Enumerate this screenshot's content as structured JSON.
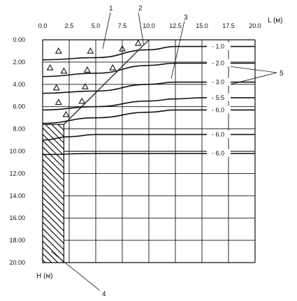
{
  "chart_data": {
    "type": "diagram",
    "x_axis": {
      "label": "L (м)",
      "ticks": [
        "0.0",
        "2.5",
        "5.0",
        "7.5",
        "10.0",
        "12.5",
        "15.0",
        "17.5",
        "20.0"
      ],
      "range": [
        0,
        20
      ]
    },
    "y_axis": {
      "label": "H (м)",
      "ticks": [
        "0.00",
        "2.00",
        "4.00",
        "6.00",
        "8.00",
        "10.00",
        "12.00",
        "14.00",
        "16.00",
        "18.00",
        "20.00"
      ],
      "range": [
        0,
        20
      ],
      "inverted": true
    },
    "callouts": [
      "1",
      "2",
      "3",
      "4",
      "5"
    ],
    "contours": [
      {
        "label": "- 1.0",
        "points": [
          [
            0,
            1.8
          ],
          [
            5,
            1.6
          ],
          [
            10,
            0.9
          ],
          [
            12.5,
            0.6
          ],
          [
            15,
            0.6
          ],
          [
            20,
            0.6
          ]
        ]
      },
      {
        "label": "- 2.0",
        "points": [
          [
            0,
            3.3
          ],
          [
            5,
            3.0
          ],
          [
            10,
            2.3
          ],
          [
            12.5,
            2.1
          ],
          [
            15,
            2.1
          ],
          [
            20,
            2.1
          ]
        ]
      },
      {
        "label": "- 3.0",
        "points": [
          [
            0,
            4.8
          ],
          [
            5,
            4.6
          ],
          [
            10,
            4.0
          ],
          [
            12.5,
            3.8
          ],
          [
            15,
            3.8
          ],
          [
            20,
            3.8
          ]
        ]
      },
      {
        "label": "- 5.5",
        "points": [
          [
            0,
            6.3
          ],
          [
            5,
            6.0
          ],
          [
            10,
            5.5
          ],
          [
            12.5,
            5.3
          ],
          [
            15,
            5.2
          ],
          [
            20,
            5.2
          ]
        ]
      },
      {
        "label": "- 6.0",
        "points": [
          [
            0,
            7.5
          ],
          [
            5,
            7.0
          ],
          [
            10,
            6.5
          ],
          [
            12.5,
            6.3
          ],
          [
            15,
            6.3
          ],
          [
            20,
            6.3
          ]
        ]
      },
      {
        "label": "- 6.0",
        "points": [
          [
            0,
            9.0
          ],
          [
            2.5,
            8.7
          ],
          [
            5,
            8.5
          ],
          [
            10,
            8.5
          ],
          [
            15,
            8.5
          ],
          [
            20,
            8.5
          ]
        ]
      },
      {
        "label": "- 6.0",
        "points": [
          [
            0,
            10.3
          ],
          [
            5,
            10.2
          ],
          [
            10,
            10.2
          ],
          [
            15,
            10.2
          ],
          [
            20,
            10.2
          ]
        ]
      }
    ]
  }
}
